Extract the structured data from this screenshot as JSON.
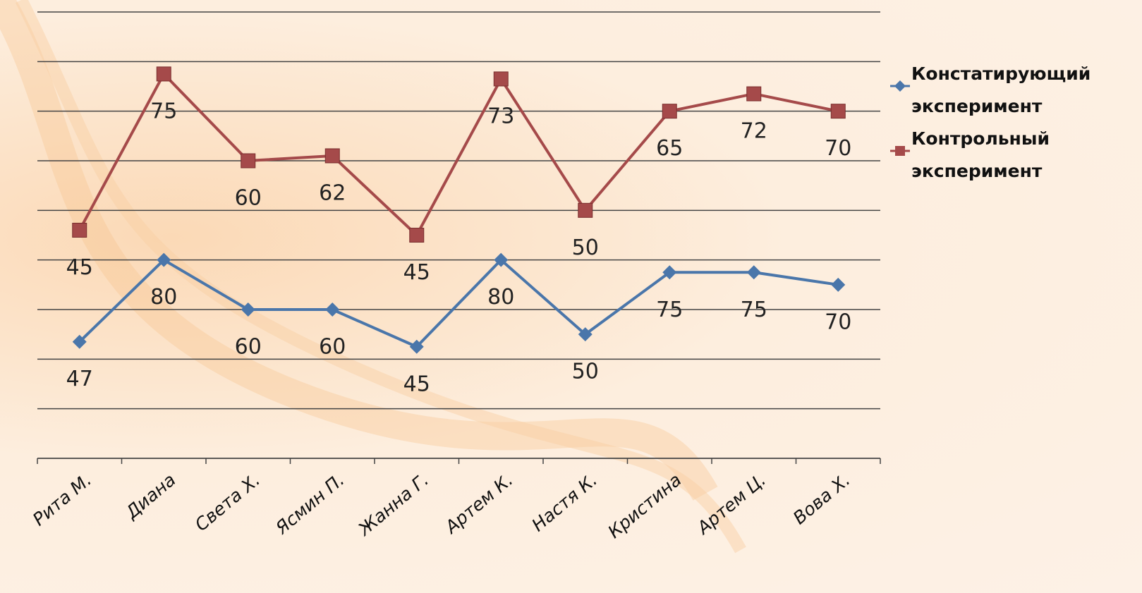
{
  "chart_data": {
    "type": "line",
    "stacked": true,
    "categories": [
      "Рита М.",
      "Диана",
      "Света Х.",
      "Ясмин П.",
      "Жанна Г.",
      "Артем К.",
      "Настя К.",
      "Кристина",
      "Артем Ц.",
      "Вова Х."
    ],
    "series": [
      {
        "name": "Констатирующий эксперимент",
        "color": "#4a76aa",
        "marker": "diamond",
        "values": [
          47,
          80,
          60,
          60,
          45,
          80,
          50,
          75,
          75,
          70
        ]
      },
      {
        "name": "Контрольный эксперимент",
        "color": "#a54a4a",
        "marker": "square",
        "values": [
          45,
          75,
          60,
          62,
          45,
          73,
          50,
          65,
          72,
          70
        ]
      }
    ],
    "ylim": [
      0,
      180
    ],
    "yticks": [
      0,
      20,
      40,
      60,
      80,
      100,
      120,
      140,
      160,
      180
    ],
    "grid": true,
    "legend": "right"
  }
}
